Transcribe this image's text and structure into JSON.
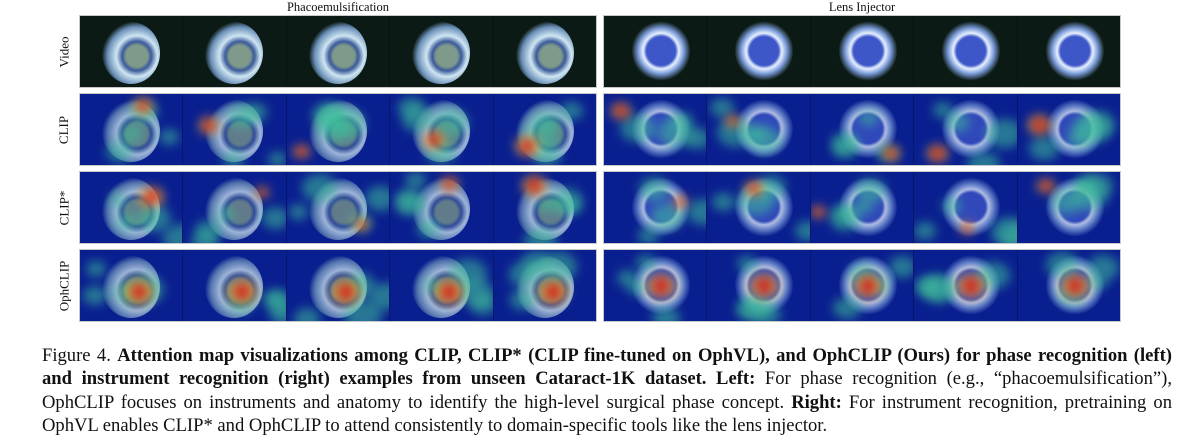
{
  "figure": {
    "columns": [
      {
        "title": "Phacoemulsification",
        "side": "left"
      },
      {
        "title": "Lens Injector",
        "side": "right"
      }
    ],
    "rows": [
      {
        "label": "Video",
        "type": "video"
      },
      {
        "label": "CLIP",
        "type": "attention"
      },
      {
        "label": "CLIP*",
        "type": "attention"
      },
      {
        "label": "OphCLIP",
        "type": "attention"
      }
    ],
    "frames_per_row": 5,
    "colors": {
      "background_video": "#0b1a14",
      "heatmap_low": "#0a1f8f",
      "heatmap_mid": "#3fbf9a",
      "heatmap_high": "#d8201a"
    }
  },
  "caption": {
    "label": "Figure 4.",
    "bold_text": "Attention map visualizations among CLIP, CLIP* (CLIP fine-tuned on OphVL), and OphCLIP (Ours) for phase recognition (left) and instrument recognition (right) examples from unseen Cataract-1K dataset.",
    "left_label": "Left:",
    "left_text": "For phase recognition (e.g., “phacoemulsification”), OphCLIP focuses on instruments and anatomy to identify the high-level surgical phase concept.",
    "right_label": "Right:",
    "right_text": "For instrument recognition, pretraining on OphVL enables CLIP* and OphCLIP to attend consistently to domain-specific tools like the lens injector."
  }
}
